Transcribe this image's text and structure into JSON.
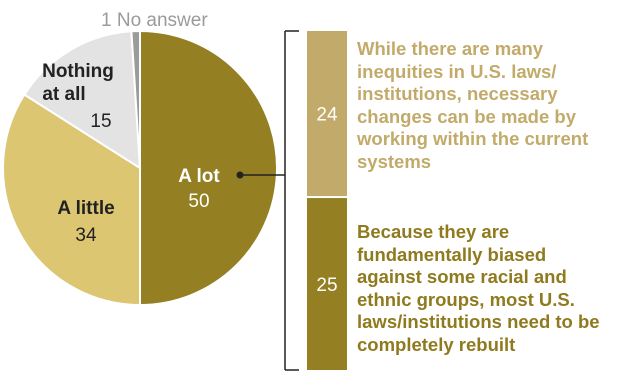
{
  "chart_data": {
    "type": "pie",
    "slices": [
      {
        "label": "A lot",
        "value": 50,
        "color": "#957f23"
      },
      {
        "label": "A little",
        "value": 34,
        "color": "#dcc672"
      },
      {
        "label": "Nothing at all",
        "label_lines": [
          "Nothing",
          "at all"
        ],
        "value": 15,
        "color": "#e3e3e3"
      },
      {
        "label": "No answer",
        "value": 1,
        "color": "#9b9b9b",
        "display": "1 No answer"
      }
    ],
    "breakdown": {
      "of": "A lot",
      "segments": [
        {
          "value": 24,
          "color": "#c2ab6a",
          "text": "While there are many inequities in U.S. laws/ institutions, necessary changes can be made by working within the current systems"
        },
        {
          "value": 25,
          "color": "#957f23",
          "text": "Because they are fundamentally biased against some racial and ethnic groups, most U.S. laws/institutions need to be completely rebuilt"
        }
      ]
    }
  }
}
